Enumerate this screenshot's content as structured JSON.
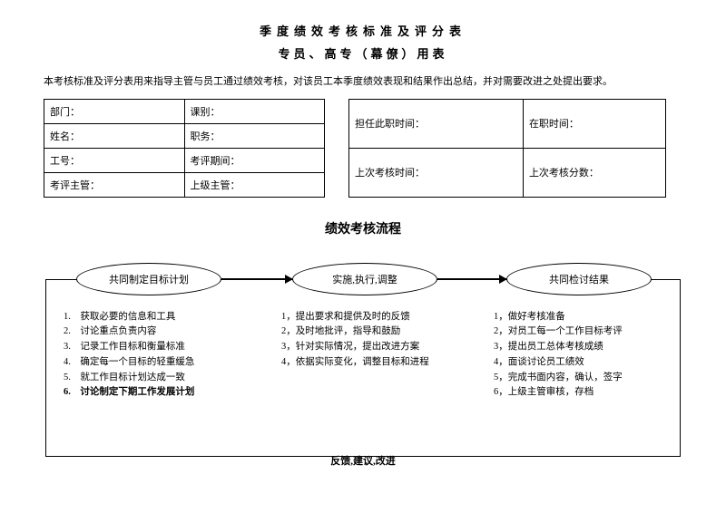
{
  "header": {
    "title1": "季度绩效考核标准及评分表",
    "title2": "专员、高专（幕僚）用表",
    "intro": "本考核标准及评分表用来指导主管与员工通过绩效考核，对该员工本季度绩效表现和结果作出总结，并对需要改进之处提出要求。"
  },
  "leftTable": {
    "r1c1": "部门：",
    "r1c2": "课别：",
    "r2c1": "姓名：",
    "r2c2": "职务：",
    "r3c1": "工号：",
    "r3c2": "考评期间：",
    "r4c1": "考评主管：",
    "r4c2": "上级主管："
  },
  "rightTable": {
    "r1c1": "担任此职时间：",
    "r1c2": "在职时间：",
    "r2c1": "上次考核时间：",
    "r2c2": "上次考核分数："
  },
  "process": {
    "title": "绩效考核流程",
    "steps": {
      "s1": "共同制定目标计划",
      "s2": "实施,执行,调整",
      "s3": "共同检讨结果"
    },
    "col1": [
      "1.　获取必要的信息和工具",
      "2.　讨论重点负责内容",
      "3.　记录工作目标和衡量标准",
      "4.　确定每一个目标的轻重缓急",
      "5.　就工作目标计划达成一致",
      "6.　讨论制定下期工作发展计划"
    ],
    "col2": [
      "1，提出要求和提供及时的反馈",
      "2，及时地批评，指导和鼓励",
      "3，针对实际情况，提出改进方案",
      "4，依据实际变化，调整目标和进程"
    ],
    "col3": [
      "1，做好考核准备",
      "2，对员工每一个工作目标考评",
      "3，提出员工总体考核成绩",
      "4，面谈讨论员工绩效",
      "5，完成书面内容，确认，签字",
      "6，上级主管审核，存档"
    ],
    "feedback": "反馈,建议,改进"
  },
  "style": {
    "bg": "#ffffff",
    "text": "#000000",
    "border": "#000000",
    "titleFont": 13,
    "bodyFont": 11,
    "listFont": 10.5
  }
}
